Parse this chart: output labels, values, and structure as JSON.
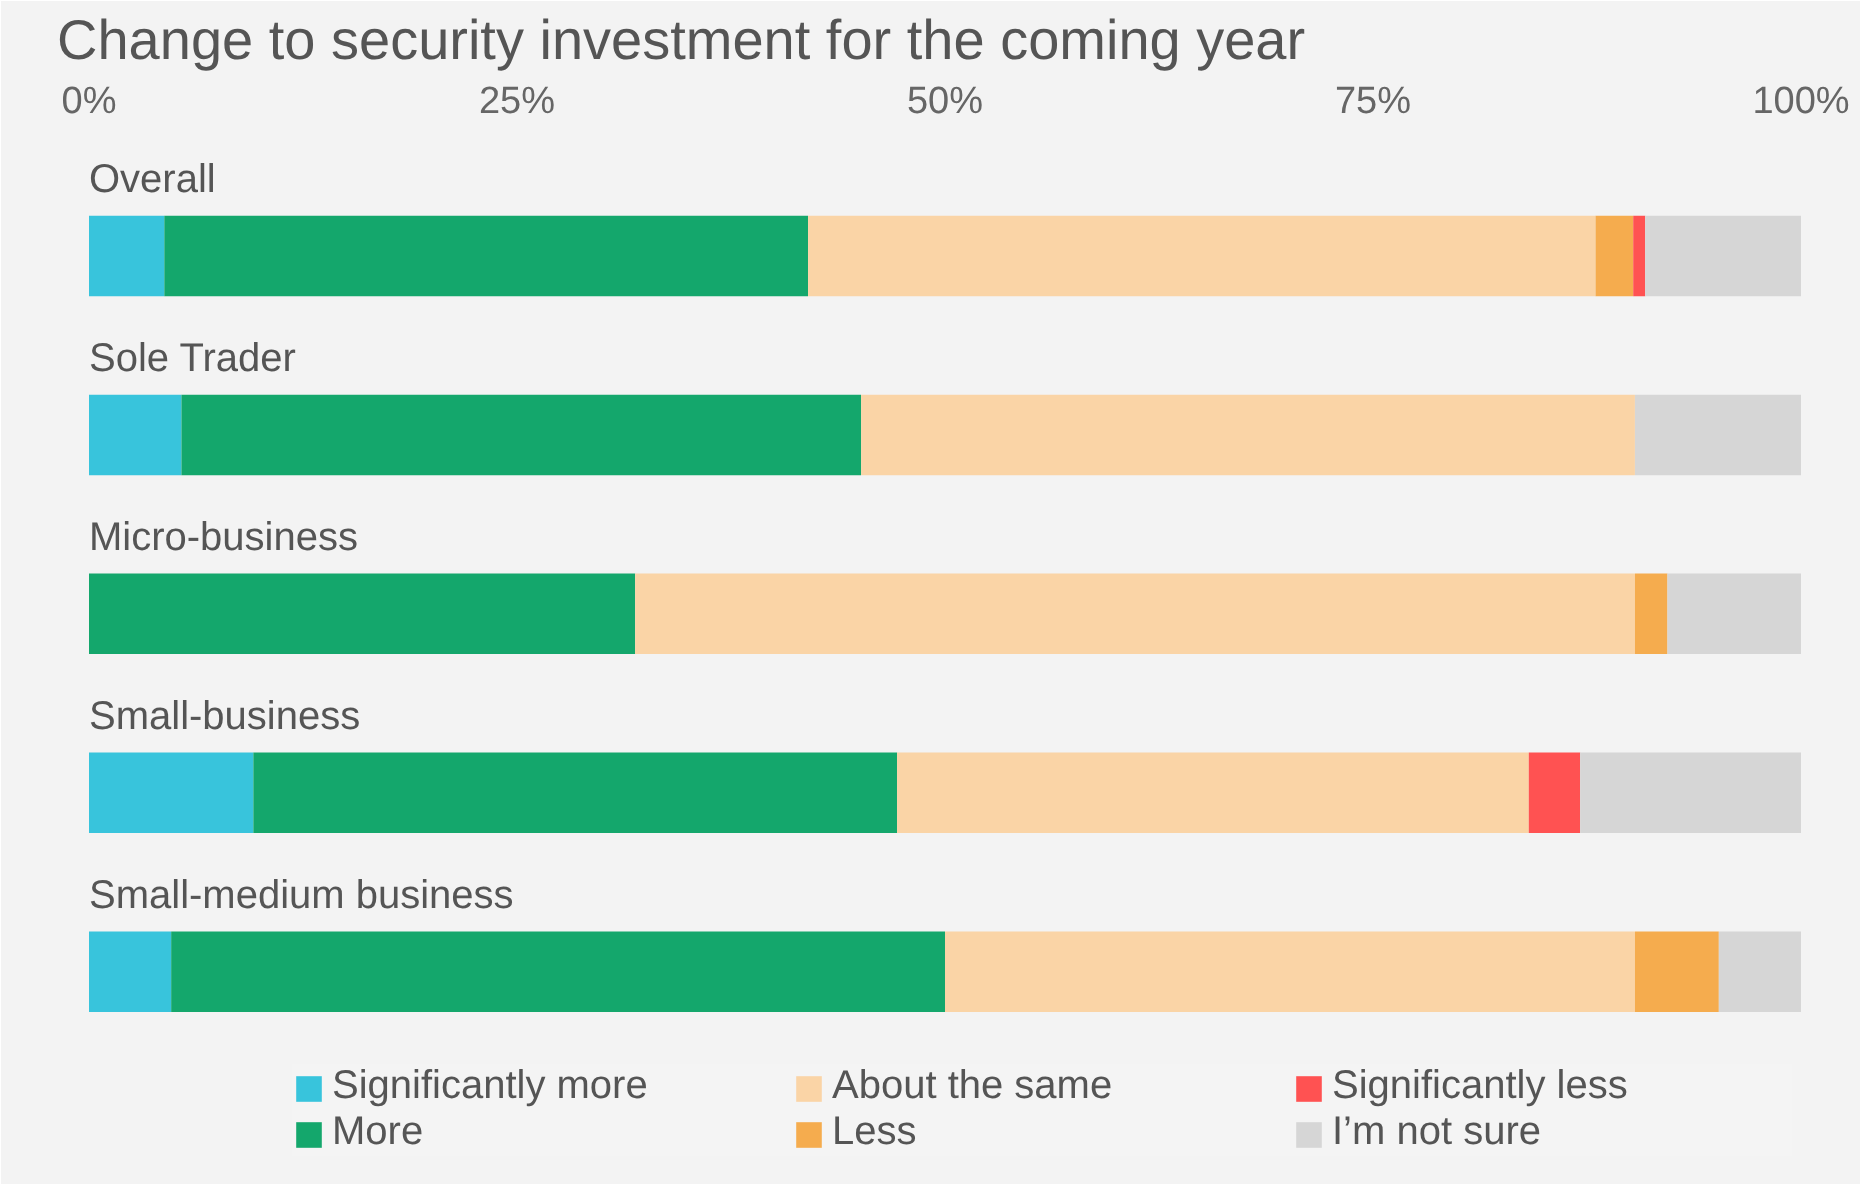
{
  "chart_data": {
    "type": "bar",
    "orientation": "horizontal",
    "stacked": true,
    "title": "Change to security investment for the coming year",
    "categories": [
      "Overall",
      "Sole Trader",
      "Micro-business",
      "Small-business",
      "Small-medium business"
    ],
    "series": [
      {
        "name": "Significantly more",
        "color": "#38c4dc",
        "values": [
          4.4,
          5.4,
          0,
          9.6,
          4.8
        ]
      },
      {
        "name": "More",
        "color": "#14a76c",
        "values": [
          37.6,
          39.7,
          31.9,
          37.6,
          45.2
        ]
      },
      {
        "name": "About the same",
        "color": "#fad4a6",
        "values": [
          46.0,
          45.2,
          58.4,
          36.9,
          40.3
        ]
      },
      {
        "name": "Less",
        "color": "#f5ac4e",
        "values": [
          2.2,
          0,
          1.9,
          0,
          4.9
        ]
      },
      {
        "name": "Significantly less",
        "color": "#ff5252",
        "values": [
          0.7,
          0,
          0,
          3.0,
          0
        ]
      },
      {
        "name": "I’m not sure",
        "color": "#d6d6d6",
        "values": [
          9.1,
          9.7,
          7.8,
          12.9,
          4.8
        ]
      }
    ],
    "xlim": [
      0,
      100
    ],
    "xticks": [
      {
        "value": 0,
        "label": "0%"
      },
      {
        "value": 25,
        "label": "25%"
      },
      {
        "value": 50,
        "label": "50%"
      },
      {
        "value": 75,
        "label": "75%"
      },
      {
        "value": 100,
        "label": "100%"
      }
    ],
    "legend": "bottom right",
    "grid": false
  }
}
